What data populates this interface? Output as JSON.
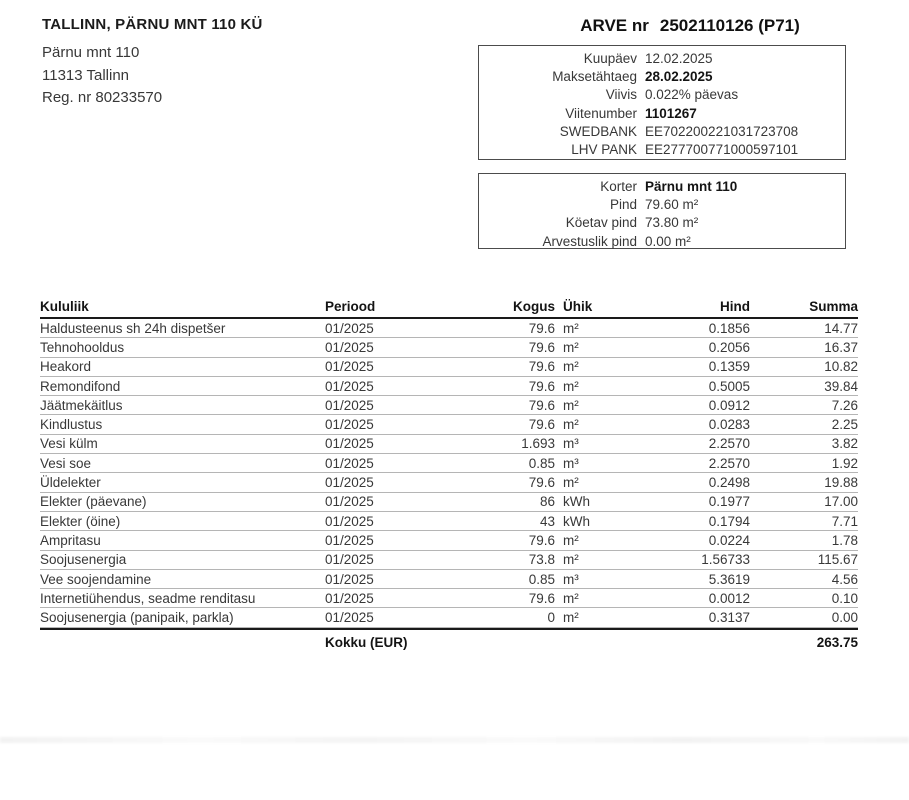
{
  "seller": {
    "name": "TALLINN, PÄRNU MNT 110 KÜ",
    "address_line1": "Pärnu mnt 110",
    "address_line2": "11313 Tallinn",
    "reg": "Reg. nr 80233570"
  },
  "invoice": {
    "title_prefix": "ARVE nr",
    "number": "2502110126 (P71)"
  },
  "details_box": {
    "rows": [
      {
        "label": "Kuupäev",
        "value": "12.02.2025",
        "bold": false
      },
      {
        "label": "Maksetähtaeg",
        "value": "28.02.2025",
        "bold": true
      },
      {
        "label": "Viivis",
        "value": "0.022% päevas",
        "bold": false
      },
      {
        "label": "Viitenumber",
        "value": "1101267",
        "bold": true
      },
      {
        "label": "SWEDBANK",
        "value": "EE702200221031723708",
        "bold": false
      },
      {
        "label": "LHV PANK",
        "value": "EE277700771000597101",
        "bold": false
      }
    ]
  },
  "property_box": {
    "rows": [
      {
        "label": "Korter",
        "value": "Pärnu mnt 110",
        "bold": true
      },
      {
        "label": "Pind",
        "value": "79.60 m²",
        "bold": false
      },
      {
        "label": "Köetav pind",
        "value": "73.80 m²",
        "bold": false
      },
      {
        "label": "Arvestuslik pind",
        "value": "0.00 m²",
        "bold": false
      }
    ]
  },
  "charges_table": {
    "headers": [
      "Kululiik",
      "Periood",
      "Kogus",
      "Ühik",
      "Hind",
      "Summa"
    ],
    "rows": [
      [
        "Haldusteenus sh 24h dispetšer",
        "01/2025",
        "79.6",
        "m²",
        "0.1856",
        "14.77"
      ],
      [
        "Tehnohooldus",
        "01/2025",
        "79.6",
        "m²",
        "0.2056",
        "16.37"
      ],
      [
        "Heakord",
        "01/2025",
        "79.6",
        "m²",
        "0.1359",
        "10.82"
      ],
      [
        "Remondifond",
        "01/2025",
        "79.6",
        "m²",
        "0.5005",
        "39.84"
      ],
      [
        "Jäätmekäitlus",
        "01/2025",
        "79.6",
        "m²",
        "0.0912",
        "7.26"
      ],
      [
        "Kindlustus",
        "01/2025",
        "79.6",
        "m²",
        "0.0283",
        "2.25"
      ],
      [
        "Vesi külm",
        "01/2025",
        "1.693",
        "m³",
        "2.2570",
        "3.82"
      ],
      [
        "Vesi soe",
        "01/2025",
        "0.85",
        "m³",
        "2.2570",
        "1.92"
      ],
      [
        "Üldelekter",
        "01/2025",
        "79.6",
        "m²",
        "0.2498",
        "19.88"
      ],
      [
        "Elekter (päevane)",
        "01/2025",
        "86",
        "kWh",
        "0.1977",
        "17.00"
      ],
      [
        "Elekter (öine)",
        "01/2025",
        "43",
        "kWh",
        "0.1794",
        "7.71"
      ],
      [
        "Ampritasu",
        "01/2025",
        "79.6",
        "m²",
        "0.0224",
        "1.78"
      ],
      [
        "Soojusenergia",
        "01/2025",
        "73.8",
        "m²",
        "1.56733",
        "115.67"
      ],
      [
        "Vee soojendamine",
        "01/2025",
        "0.85",
        "m³",
        "5.3619",
        "4.56"
      ],
      [
        "Internetiühendus, seadme renditasu",
        "01/2025",
        "79.6",
        "m²",
        "0.0012",
        "0.10"
      ],
      [
        "Soojusenergia (panipaik, parkla)",
        "01/2025",
        "0",
        "m²",
        "0.3137",
        "0.00"
      ]
    ],
    "total_label": "Kokku (EUR)",
    "total_value": "263.75"
  }
}
